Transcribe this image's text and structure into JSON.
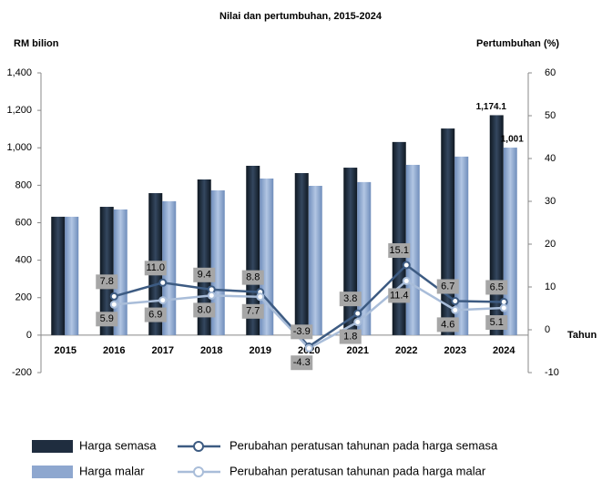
{
  "chart_data": {
    "type": "bar_line",
    "title": "Nilai dan pertumbuhan, 2015-2024",
    "y_label": "RM bilion",
    "y2_label": "Pertumbuhan (%)",
    "x_label": "Tahun",
    "categories": [
      "2015",
      "2016",
      "2017",
      "2018",
      "2019",
      "2020",
      "2021",
      "2022",
      "2023",
      "2024"
    ],
    "ylim": [
      -200,
      1400
    ],
    "yticks": [
      -200,
      0,
      200,
      400,
      600,
      800,
      {
        "value": 1000,
        "label": "1,000"
      },
      {
        "value": 1200,
        "label": "1,200"
      },
      {
        "value": 1400,
        "label": "1,400"
      }
    ],
    "y2lim": [
      -10,
      60
    ],
    "y2ticks": [
      -10,
      0,
      10,
      20,
      30,
      40,
      50,
      60
    ],
    "series": [
      {
        "name": "Harga semasa",
        "kind": "bar",
        "color": "#1f2d3f",
        "values": [
          632,
          685,
          758,
          831,
          904,
          865,
          894,
          1031,
          1103,
          1174.1
        ],
        "value_labels": [
          null,
          null,
          null,
          null,
          null,
          null,
          null,
          null,
          null,
          "1,174.1"
        ]
      },
      {
        "name": "Harga malar",
        "kind": "bar",
        "color": "#8ea7cf",
        "values": [
          632,
          671,
          715,
          773,
          836,
          797,
          817,
          909,
          953,
          1001
        ],
        "value_labels": [
          null,
          null,
          null,
          null,
          null,
          null,
          null,
          null,
          null,
          "1,001"
        ]
      },
      {
        "name": "Perubahan peratusan tahunan pada harga semasa",
        "kind": "line",
        "axis": "y2",
        "color": "#3d5b82",
        "values": [
          null,
          7.8,
          11.0,
          9.4,
          8.8,
          -3.9,
          3.8,
          15.1,
          6.7,
          6.5
        ],
        "value_labels": [
          null,
          "7.8",
          "11.0",
          "9.4",
          "8.8",
          "-3.9",
          "3.8",
          "15.1",
          "6.7",
          "6.5"
        ]
      },
      {
        "name": "Perubahan peratusan tahunan pada harga malar",
        "kind": "line",
        "axis": "y2",
        "color": "#a9bdd9",
        "values": [
          null,
          5.9,
          6.9,
          8.0,
          7.7,
          -4.3,
          1.8,
          11.4,
          4.6,
          5.1
        ],
        "value_labels": [
          null,
          "5.9",
          "6.9",
          "8.0",
          "7.7",
          "-4.3",
          "1.8",
          "11.4",
          "4.6",
          "5.1"
        ]
      }
    ]
  }
}
